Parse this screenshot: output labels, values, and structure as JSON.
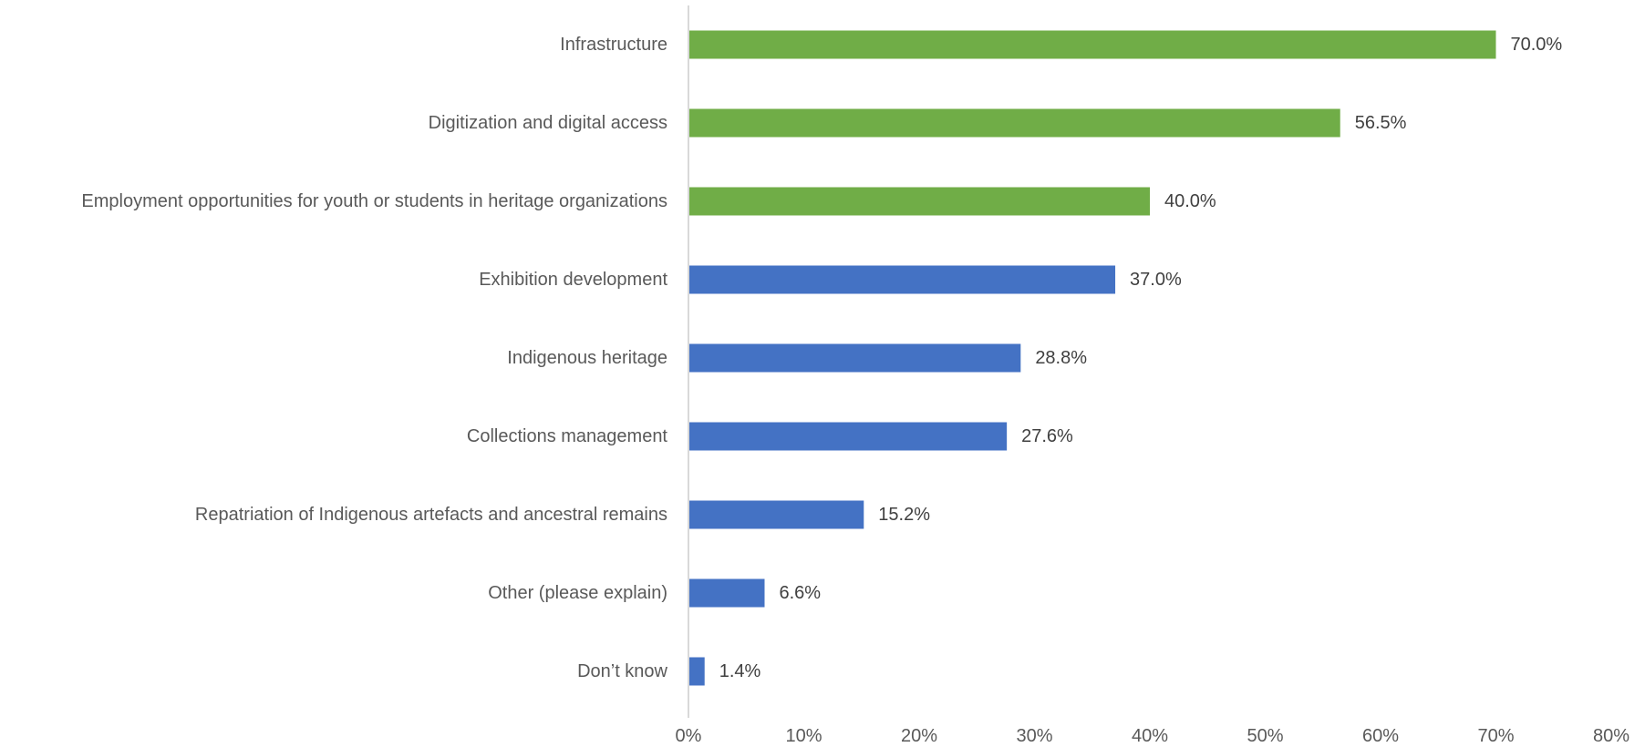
{
  "chart_data": {
    "type": "bar",
    "orientation": "horizontal",
    "title": "",
    "xlabel": "",
    "ylabel": "",
    "categories": [
      "Infrastructure",
      "Digitization and digital access",
      "Employment opportunities for youth or students in heritage organizations",
      "Exhibition development",
      "Indigenous heritage",
      "Collections management",
      "Repatriation of Indigenous artefacts and ancestral remains",
      "Other (please explain)",
      "Don’t know"
    ],
    "values": [
      70.0,
      56.5,
      40.0,
      37.0,
      28.8,
      27.6,
      15.2,
      6.6,
      1.4
    ],
    "value_labels": [
      "70.0%",
      "56.5%",
      "40.0%",
      "37.0%",
      "28.8%",
      "27.6%",
      "15.2%",
      "6.6%",
      "1.4%"
    ],
    "highlighted": [
      true,
      true,
      true,
      false,
      false,
      false,
      false,
      false,
      false
    ],
    "colors": {
      "highlight": "#70AD47",
      "default": "#4472C4",
      "axis": "#D9D9D9",
      "label": "#595959",
      "value_label": "#404040"
    },
    "xlim": [
      0,
      80
    ],
    "x_ticks": [
      0,
      10,
      20,
      30,
      40,
      50,
      60,
      70,
      80
    ],
    "x_tick_labels": [
      "0%",
      "10%",
      "20%",
      "30%",
      "40%",
      "50%",
      "60%",
      "70%",
      "80%"
    ],
    "grid": false,
    "legend": "none"
  }
}
